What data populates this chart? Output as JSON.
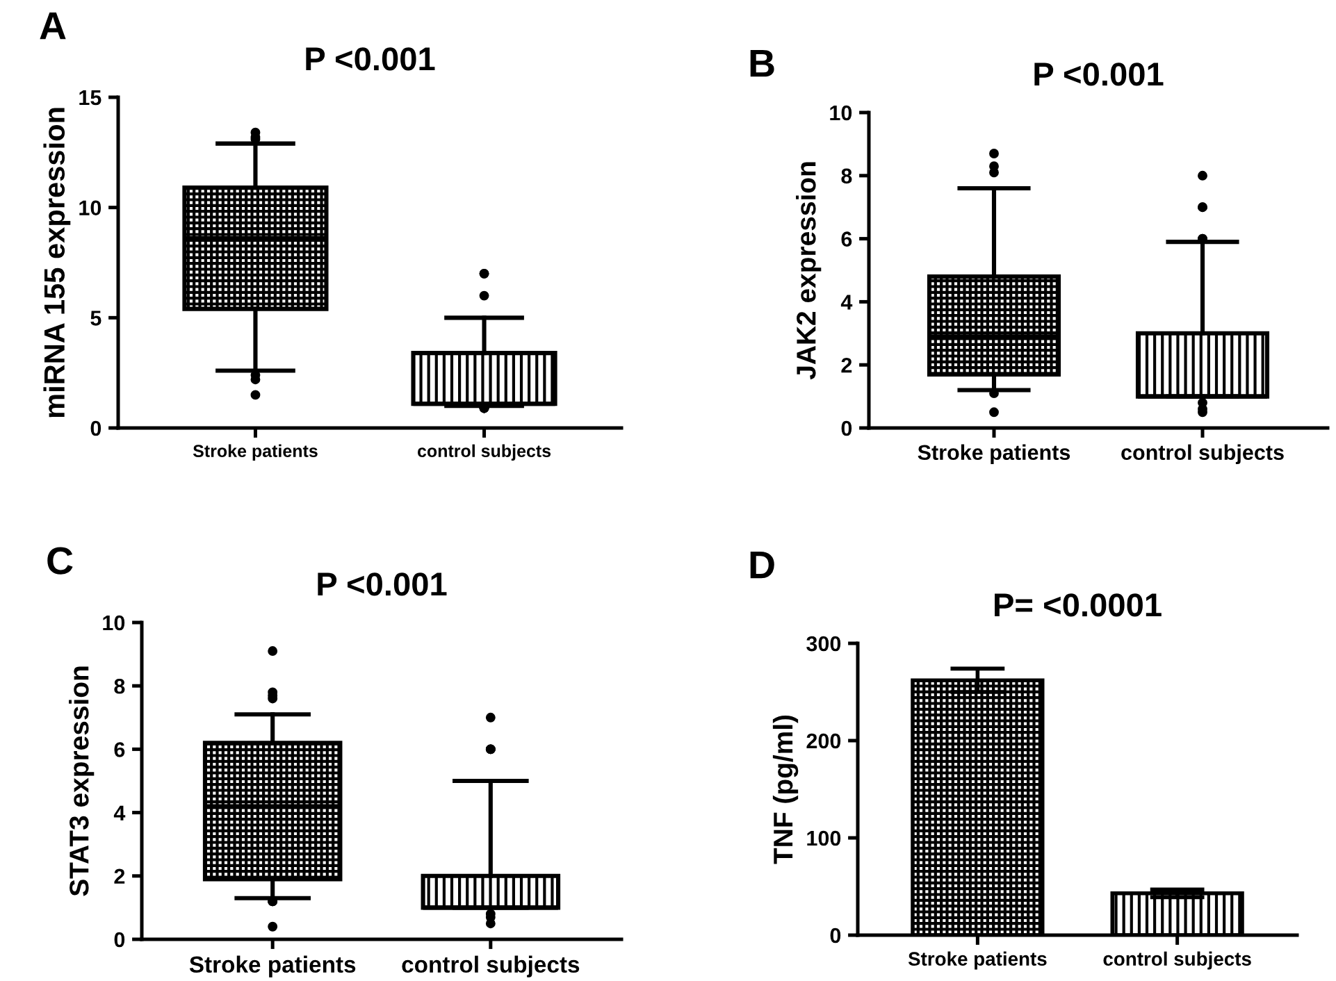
{
  "chart_data": [
    {
      "type": "box",
      "title": "P <0.001",
      "annotations": [
        "A"
      ],
      "ylabel": "miRNA 155 expression",
      "categories": [
        "Stroke patients",
        "control subjects"
      ],
      "ylim": [
        0,
        15
      ],
      "yticks": [
        0,
        5,
        10,
        15
      ],
      "grid": false,
      "legend": false,
      "boxes": [
        {
          "low": 2.6,
          "q1": 5.4,
          "median": 8.6,
          "q3": 10.9,
          "high": 12.9,
          "outliers": [
            13.1,
            13.4,
            13.2,
            2.4,
            2.2,
            1.5
          ]
        },
        {
          "low": 1.0,
          "q1": 1.1,
          "median": 1.1,
          "q3": 3.4,
          "high": 5.0,
          "outliers": [
            7,
            7,
            6,
            0.9,
            0.9,
            0.9,
            0.9
          ]
        }
      ]
    },
    {
      "type": "box",
      "title": "P <0.001",
      "annotations": [
        "B"
      ],
      "ylabel": "JAK2 expression",
      "categories": [
        "Stroke patients",
        "control subjects"
      ],
      "ylim": [
        0,
        10
      ],
      "yticks": [
        0,
        2,
        4,
        6,
        8,
        10
      ],
      "grid": false,
      "legend": false,
      "boxes": [
        {
          "low": 1.2,
          "q1": 1.7,
          "median": 2.9,
          "q3": 4.8,
          "high": 7.6,
          "outliers": [
            8.7,
            8.3,
            8.1,
            1.1,
            0.5
          ]
        },
        {
          "low": 1.0,
          "q1": 1.0,
          "median": 1.0,
          "q3": 3.0,
          "high": 5.9,
          "outliers": [
            8,
            7,
            7,
            6,
            6,
            0.8,
            0.6,
            0.5
          ]
        }
      ]
    },
    {
      "type": "box",
      "title": "P <0.001",
      "annotations": [
        "C"
      ],
      "ylabel": "STAT3 expression",
      "categories": [
        "Stroke patients",
        "control subjects"
      ],
      "ylim": [
        0,
        10
      ],
      "yticks": [
        0,
        2,
        4,
        6,
        8,
        10
      ],
      "grid": false,
      "legend": false,
      "boxes": [
        {
          "low": 1.3,
          "q1": 1.9,
          "median": 4.2,
          "q3": 6.2,
          "high": 7.1,
          "outliers": [
            9.1,
            7.8,
            7.7,
            7.6,
            1.2,
            1.2,
            1.2,
            0.4
          ]
        },
        {
          "low": 1.0,
          "q1": 1.0,
          "median": 1.0,
          "q3": 2.0,
          "high": 5.0,
          "outliers": [
            7,
            6,
            6,
            6,
            0.8,
            0.7,
            0.5
          ]
        }
      ]
    },
    {
      "type": "bar",
      "title": "P= <0.0001",
      "annotations": [
        "D"
      ],
      "ylabel": "TNF (pg/ml)",
      "categories": [
        "Stroke patients",
        "control subjects"
      ],
      "values": [
        262,
        43
      ],
      "errors": [
        12,
        4
      ],
      "colors": [
        "#000000",
        "#000000"
      ],
      "ylim": [
        0,
        300
      ],
      "yticks": [
        0,
        100,
        200,
        300
      ],
      "grid": false,
      "legend": false
    }
  ]
}
